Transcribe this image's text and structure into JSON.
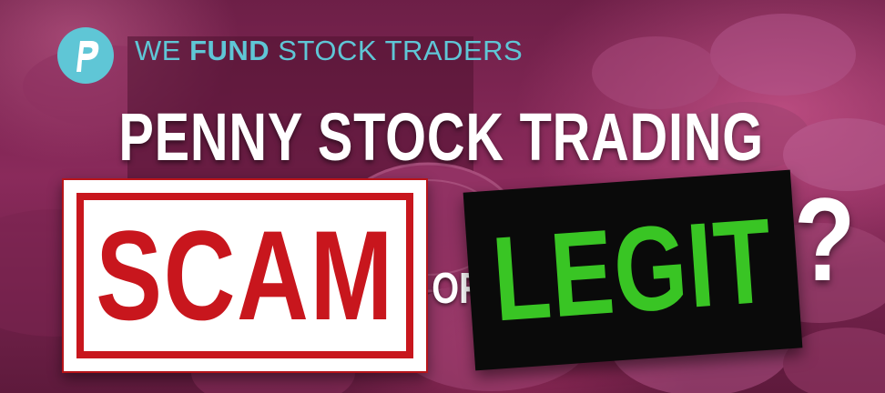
{
  "brand": {
    "tagline_regular_1": "WE ",
    "tagline_bold": "FUND",
    "tagline_regular_2": " STOCK TRADERS",
    "logo_letter": "P",
    "logo_color": "#5fc6d6"
  },
  "headline": "PENNY STOCK TRADING",
  "stamp": {
    "text": "SCAM",
    "color": "#c8161d"
  },
  "connector": "OR",
  "legit": {
    "text": "LEGIT",
    "color": "#39c524",
    "background": "#0a0a0a"
  },
  "question_mark": "?"
}
